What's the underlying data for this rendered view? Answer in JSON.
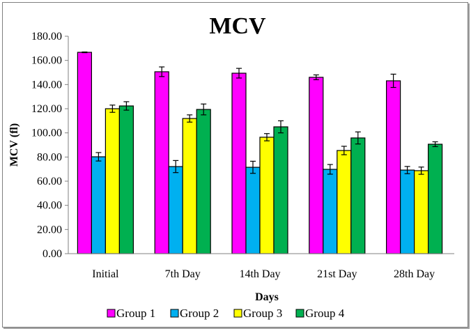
{
  "chart_data": {
    "type": "bar",
    "title": "MCV",
    "xlabel": "Days",
    "ylabel": "MCV  (fl)",
    "ylim": [
      0,
      180
    ],
    "yticks": [
      "0.00",
      "20.00",
      "40.00",
      "60.00",
      "80.00",
      "100.00",
      "120.00",
      "140.00",
      "160.00",
      "180.00"
    ],
    "ytick_values": [
      0,
      20,
      40,
      60,
      80,
      100,
      120,
      140,
      160,
      180
    ],
    "categories": [
      "Initial",
      "7th Day",
      "14th Day",
      "21st Day",
      "28th Day"
    ],
    "grid": false,
    "legend_position": "bottom",
    "error_bars": true,
    "series": [
      {
        "name": "Group 1",
        "color": "#ff00ff",
        "values": [
          166.7,
          150.6,
          149.4,
          146.0,
          143.1
        ],
        "errors": [
          0.3,
          4.0,
          4.0,
          2.0,
          5.5
        ]
      },
      {
        "name": "Group 2",
        "color": "#00b0f0",
        "values": [
          80.2,
          72.1,
          71.5,
          69.8,
          69.2
        ],
        "errors": [
          3.5,
          5.0,
          5.0,
          4.0,
          3.0
        ]
      },
      {
        "name": "Group 3",
        "color": "#ffff00",
        "values": [
          120.0,
          111.9,
          96.4,
          85.4,
          68.7
        ],
        "errors": [
          3.0,
          3.0,
          3.0,
          3.5,
          3.0
        ]
      },
      {
        "name": "Group 4",
        "color": "#00b050",
        "values": [
          122.3,
          119.4,
          105.0,
          95.8,
          90.6
        ],
        "errors": [
          3.5,
          4.5,
          5.0,
          5.0,
          2.0
        ]
      }
    ]
  }
}
